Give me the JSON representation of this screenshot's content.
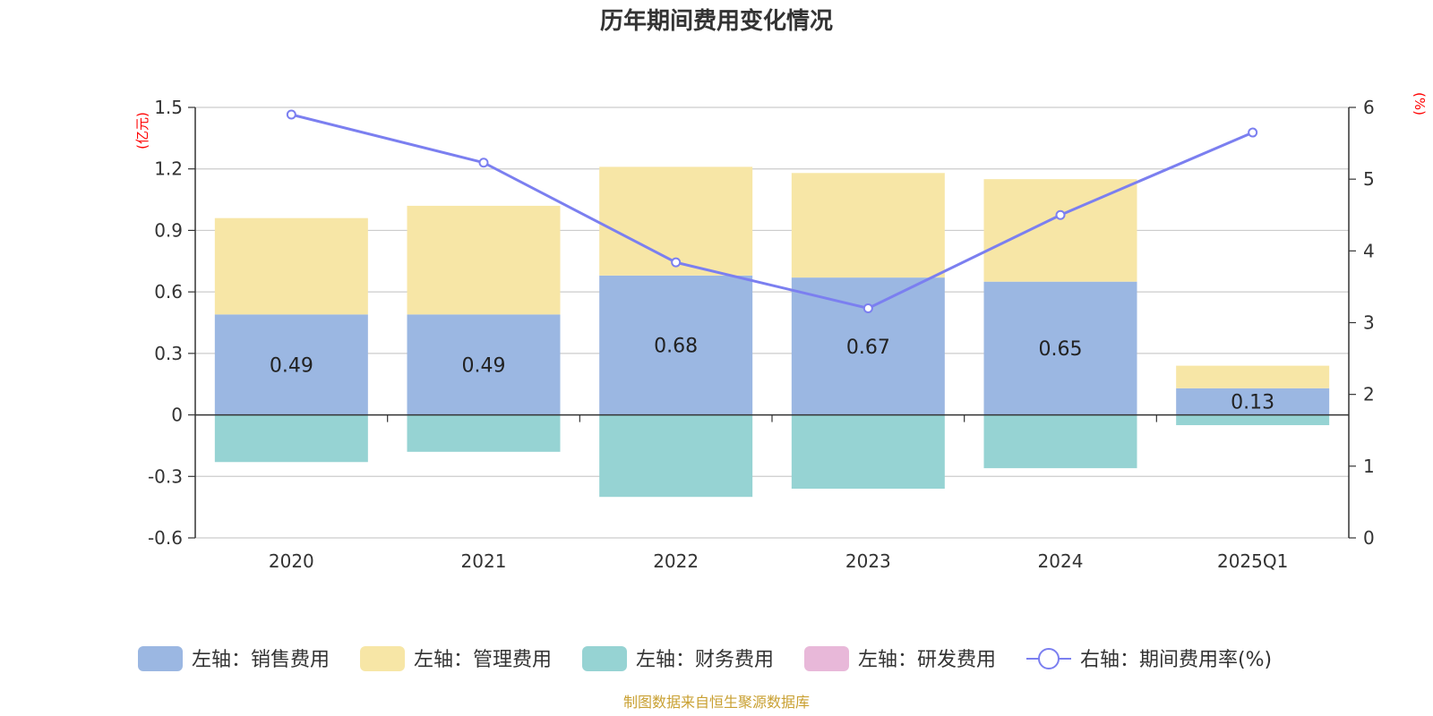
{
  "chart_data": {
    "type": "bar",
    "title": "历年期间费用变化情况",
    "categories": [
      "2020",
      "2021",
      "2022",
      "2023",
      "2024",
      "2025Q1"
    ],
    "left_axis": {
      "unit": "(亿元)",
      "ylim": [
        -0.6,
        1.5
      ],
      "ticks": [
        -0.6,
        -0.3,
        0,
        0.3,
        0.6,
        0.9,
        1.2,
        1.5
      ]
    },
    "right_axis": {
      "unit": "(%)",
      "ylim": [
        0,
        6
      ],
      "ticks": [
        0,
        1,
        2,
        3,
        4,
        5,
        6
      ]
    },
    "series": [
      {
        "name": "左轴：销售费用",
        "type": "bar",
        "axis": "left",
        "color": "#9bb7e2",
        "values": [
          0.49,
          0.49,
          0.68,
          0.67,
          0.65,
          0.13
        ],
        "labels": [
          "0.49",
          "0.49",
          "0.68",
          "0.67",
          "0.65",
          "0.13"
        ]
      },
      {
        "name": "左轴：管理费用",
        "type": "bar",
        "axis": "left",
        "color": "#f7e6a6",
        "values": [
          0.47,
          0.53,
          0.53,
          0.51,
          0.5,
          0.11
        ]
      },
      {
        "name": "左轴：财务费用",
        "type": "bar",
        "axis": "left",
        "color": "#96d3d3",
        "values": [
          -0.23,
          -0.18,
          -0.4,
          -0.36,
          -0.26,
          -0.05
        ]
      },
      {
        "name": "左轴：研发费用",
        "type": "bar",
        "axis": "left",
        "color": "#e8b8d9",
        "values": [
          0,
          0,
          0,
          0,
          0,
          0
        ]
      },
      {
        "name": "右轴：期间费用率(%)",
        "type": "line",
        "axis": "right",
        "color": "#7b7ff0",
        "values": [
          5.9,
          5.23,
          3.84,
          3.2,
          4.5,
          5.65
        ]
      }
    ],
    "grid": true,
    "legend": "bottom",
    "source": "制图数据来自恒生聚源数据库"
  }
}
